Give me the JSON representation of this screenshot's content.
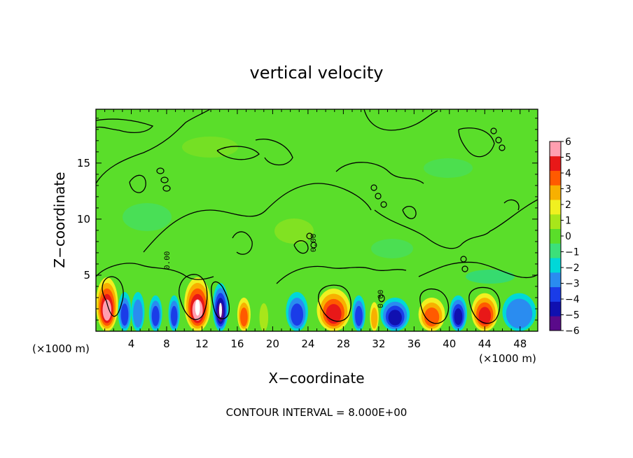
{
  "chart_data": {
    "type": "heatmap",
    "title": "vertical velocity",
    "xlabel": "X−coordinate",
    "ylabel": "Z−coordinate",
    "x_unit": "(×1000 m)",
    "y_unit": "(×1000 m)",
    "footer": "CONTOUR INTERVAL = 8.000E+00",
    "xlim": [
      0,
      50
    ],
    "ylim": [
      0,
      19.8
    ],
    "x_ticks": [
      4,
      8,
      12,
      16,
      20,
      24,
      28,
      32,
      36,
      40,
      44,
      48
    ],
    "x_tick_labels": [
      "4",
      "8",
      "12",
      "16",
      "20",
      "24",
      "28",
      "32",
      "36",
      "40",
      "44",
      "48"
    ],
    "y_ticks": [
      5,
      10,
      15
    ],
    "y_tick_labels": [
      "5",
      "10",
      "15"
    ],
    "contour_labels": [
      "0.00",
      "0.00",
      "0.00"
    ],
    "colorbar": {
      "min": -6,
      "max": 6,
      "tick_labels": [
        "6",
        "5",
        "4",
        "3",
        "2",
        "1",
        "0",
        "−1",
        "−2",
        "−3",
        "−4",
        "−5",
        "−6"
      ],
      "colors": [
        "#5a0a8a",
        "#1010b0",
        "#1a3ce8",
        "#2a8cf0",
        "#00d8d8",
        "#3ce07a",
        "#5ade2a",
        "#a8e61a",
        "#f0f020",
        "#f8b000",
        "#ff5a00",
        "#e81818",
        "#ff9fb0"
      ]
    },
    "cells": [
      {
        "x0": 0,
        "x1": 2.5,
        "z1": 4.8,
        "w": 5.3
      },
      {
        "x0": 2.5,
        "x1": 4.0,
        "z1": 3.5,
        "w": -3.5
      },
      {
        "x0": 4.0,
        "x1": 5.5,
        "z1": 3.5,
        "w": -2.5
      },
      {
        "x0": 6.0,
        "x1": 7.5,
        "z1": 3.2,
        "w": -3.8
      },
      {
        "x0": 8.2,
        "x1": 9.5,
        "z1": 3.2,
        "w": -3.5
      },
      {
        "x0": 10.0,
        "x1": 13.0,
        "z1": 4.8,
        "w": 5.6
      },
      {
        "x0": 13.2,
        "x1": 15.0,
        "z1": 4.3,
        "w": -6.0
      },
      {
        "x0": 16.0,
        "x1": 17.5,
        "z1": 3.0,
        "w": 4.0
      },
      {
        "x0": 18.5,
        "x1": 19.5,
        "z1": 2.5,
        "w": 1.0
      },
      {
        "x0": 21.5,
        "x1": 24.0,
        "z1": 3.5,
        "w": -3.5
      },
      {
        "x0": 25.0,
        "x1": 28.8,
        "z1": 3.8,
        "w": 4.4
      },
      {
        "x0": 29.0,
        "x1": 30.5,
        "z1": 3.2,
        "w": -3.8
      },
      {
        "x0": 31.0,
        "x1": 32.0,
        "z1": 2.6,
        "w": 2.5
      },
      {
        "x0": 32.2,
        "x1": 35.5,
        "z1": 3.0,
        "w": -4.2
      },
      {
        "x0": 36.5,
        "x1": 39.5,
        "z1": 3.0,
        "w": 4.0
      },
      {
        "x0": 40.0,
        "x1": 42.0,
        "z1": 3.2,
        "w": -4.2
      },
      {
        "x0": 42.5,
        "x1": 45.5,
        "z1": 3.4,
        "w": 4.6
      },
      {
        "x0": 46.0,
        "x1": 49.8,
        "z1": 3.4,
        "w": -3.2
      }
    ]
  }
}
